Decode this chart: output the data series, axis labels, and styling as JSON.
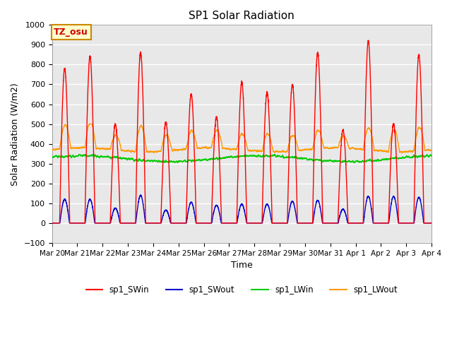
{
  "title": "SP1 Solar Radiation",
  "ylabel": "Solar Radiation (W/m2)",
  "xlabel": "Time",
  "ylim": [
    -100,
    1000
  ],
  "background_color": "#e8e8e8",
  "grid_color": "white",
  "annotation_text": "TZ_osu",
  "annotation_bg": "#ffffcc",
  "annotation_border": "#cc8800",
  "xtick_labels": [
    "Mar 20",
    "Mar 21",
    "Mar 22",
    "Mar 23",
    "Mar 24",
    "Mar 25",
    "Mar 26",
    "Mar 27",
    "Mar 28",
    "Mar 29",
    "Mar 30",
    "Mar 31",
    "Apr 1",
    "Apr 2",
    "Apr 3",
    "Apr 4"
  ],
  "series_colors": {
    "sp1_SWin": "#ff0000",
    "sp1_SWout": "#0000cc",
    "sp1_LWin": "#00cc00",
    "sp1_LWout": "#ff9900"
  },
  "linewidth": 1.0,
  "SWin_peaks": [
    780,
    840,
    500,
    860,
    510,
    650,
    535,
    710,
    660,
    700,
    860,
    470,
    920,
    500,
    850
  ],
  "SWout_peaks": [
    120,
    120,
    75,
    140,
    65,
    105,
    90,
    95,
    95,
    110,
    115,
    70,
    135,
    135,
    130
  ],
  "LWin_base": 325,
  "LWout_base": 370
}
